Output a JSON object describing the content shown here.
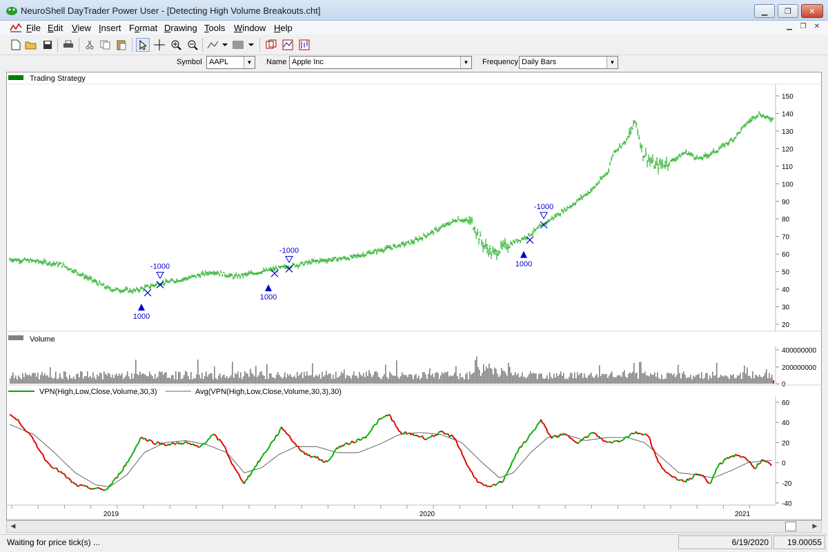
{
  "window": {
    "title": "NeuroShell DayTrader Power User - [Detecting High Volume Breakouts.cht]"
  },
  "menu": [
    "File",
    "Edit",
    "View",
    "Insert",
    "Format",
    "Drawing",
    "Tools",
    "Window",
    "Help"
  ],
  "menu_hotkeys": [
    "F",
    "E",
    "V",
    "I",
    "o",
    "D",
    "T",
    "W",
    "H"
  ],
  "toolbar": {
    "icons": [
      "new-icon",
      "open-icon",
      "save-icon",
      "print-icon",
      "cut-icon",
      "copy-icon",
      "paste-icon",
      "pointer-icon",
      "crosshair-icon",
      "zoom-in-icon",
      "zoom-out-icon",
      "line-draw-icon",
      "fill-pattern-icon",
      "indicator-icon",
      "chart-props-icon",
      "bars-icon"
    ]
  },
  "selectors": {
    "symbol_label": "Symbol",
    "symbol_value": "AAPL",
    "name_label": "Name",
    "name_value": "Apple Inc",
    "frequency_label": "Frequency",
    "frequency_value": "Daily Bars"
  },
  "panels": {
    "price": {
      "legend": "Trading Strategy",
      "legend_color": "#008000",
      "y_ticks": [
        "150",
        "140",
        "130",
        "120",
        "110",
        "100",
        "90",
        "80",
        "70",
        "60",
        "50",
        "40",
        "30",
        "20"
      ]
    },
    "volume": {
      "legend": "Volume",
      "legend_color": "#808080",
      "y_ticks": [
        "400000000",
        "200000000",
        "0"
      ]
    },
    "vpn": {
      "legend1": "VPN(High,Low,Close,Volume,30,3)",
      "legend1_color": "#00aa00",
      "legend2": "Avg(VPN(High,Low,Close,Volume,30,3),30)",
      "legend2_color": "#606060",
      "y_ticks": [
        "60",
        "40",
        "20",
        "0",
        "-20",
        "-40"
      ]
    }
  },
  "x_axis": [
    "2019",
    "2020",
    "2021"
  ],
  "trades": [
    {
      "side": "buy",
      "label": "1000"
    },
    {
      "side": "sell",
      "label": "-1000"
    },
    {
      "side": "buy",
      "label": "1000"
    },
    {
      "side": "sell",
      "label": "-1000"
    },
    {
      "side": "buy",
      "label": "1000"
    },
    {
      "side": "sell",
      "label": "-1000"
    }
  ],
  "colors": {
    "price": "#00a000",
    "vpn_up": "#00b000",
    "vpn_down": "#e00000",
    "avg": "#555555",
    "marker": "#0000cc"
  },
  "status": {
    "message": "Waiting for price tick(s) ...",
    "date": "6/19/2020",
    "value": "19.00055"
  }
}
